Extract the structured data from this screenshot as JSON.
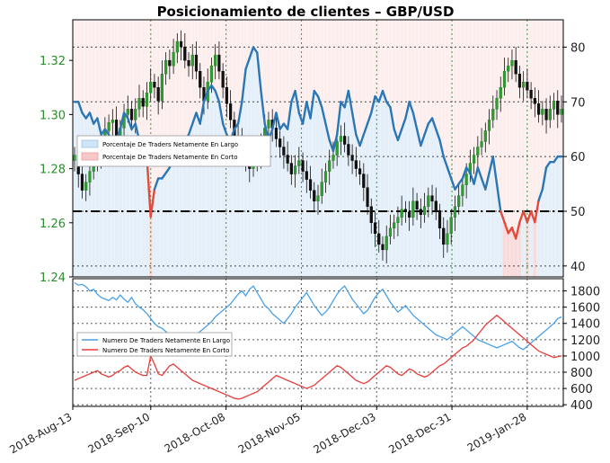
{
  "chart_data": {
    "type": "line",
    "title": "Posicionamiento de clientes – GBP/USD",
    "x_dates": [
      "2018-Aug-13",
      "2018-Sep-10",
      "2018-Oct-08",
      "2018-Nov-05",
      "2018-Dec-03",
      "2018-Dec-31",
      "2019-Jan-28"
    ],
    "top_panel": {
      "left_axis": {
        "label_ticks": [
          "1.24",
          "1.26",
          "1.28",
          "1.30",
          "1.32"
        ],
        "ylim": [
          1.24,
          1.335
        ],
        "color": "#2e8b2e"
      },
      "right_axis": {
        "label_ticks": [
          "40",
          "50",
          "60",
          "70",
          "80"
        ],
        "ylim": [
          38,
          85
        ]
      },
      "reference_line": {
        "value": 50,
        "style": "dash-dot"
      },
      "legend": [
        {
          "label": "Porcentaje De Traders Netamente En Largo",
          "color": "#cfe4f6"
        },
        {
          "label": "Porcentaje De Traders Netamente En Corto",
          "color": "#f8c8c8"
        }
      ],
      "series": [
        {
          "name": "Porcentaje De Traders Netamente En Largo (%)",
          "color": "#2b77b6",
          "values": [
            70,
            70,
            68,
            67,
            68,
            66,
            67,
            64,
            65,
            64,
            61,
            63,
            65,
            68,
            67,
            65,
            66,
            63,
            62,
            60,
            49,
            54,
            56,
            56,
            57,
            58,
            60,
            62,
            60,
            63,
            64,
            66,
            68,
            66,
            70,
            72,
            73,
            72,
            70,
            66,
            64,
            63,
            65,
            66,
            70,
            76,
            78,
            80,
            79,
            72,
            66,
            63,
            65,
            68,
            65,
            66,
            65,
            70,
            72,
            68,
            66,
            70,
            67,
            72,
            71,
            69,
            66,
            63,
            61,
            64,
            70,
            69,
            72,
            68,
            64,
            62,
            64,
            66,
            68,
            71,
            70,
            72,
            70,
            69,
            65,
            63,
            65,
            67,
            70,
            68,
            65,
            62,
            64,
            66,
            67,
            65,
            63,
            60,
            58,
            56,
            54,
            55,
            56,
            58,
            57,
            55,
            58,
            56,
            54,
            57,
            60,
            55,
            50,
            48,
            46,
            47,
            45,
            48,
            50,
            48,
            50,
            48,
            52,
            54,
            58,
            59,
            59,
            60,
            60
          ]
        },
        {
          "name": "GBP/USD",
          "color": "#2e8b2e",
          "values": [
            1.285,
            1.278,
            1.272,
            1.275,
            1.279,
            1.283,
            1.285,
            1.29,
            1.294,
            1.297,
            1.298,
            1.292,
            1.295,
            1.3,
            1.302,
            1.298,
            1.302,
            1.306,
            1.303,
            1.308,
            1.312,
            1.31,
            1.305,
            1.315,
            1.32,
            1.318,
            1.323,
            1.327,
            1.325,
            1.32,
            1.318,
            1.322,
            1.316,
            1.31,
            1.305,
            1.312,
            1.318,
            1.322,
            1.316,
            1.31,
            1.304,
            1.298,
            1.292,
            1.29,
            1.287,
            1.283,
            1.28,
            1.283,
            1.285,
            1.289,
            1.295,
            1.298,
            1.295,
            1.291,
            1.288,
            1.285,
            1.282,
            1.278,
            1.281,
            1.283,
            1.279,
            1.276,
            1.272,
            1.268,
            1.27,
            1.275,
            1.279,
            1.283,
            1.285,
            1.29,
            1.292,
            1.289,
            1.285,
            1.283,
            1.28,
            1.278,
            1.273,
            1.266,
            1.26,
            1.256,
            1.252,
            1.25,
            1.255,
            1.258,
            1.26,
            1.262,
            1.265,
            1.264,
            1.262,
            1.268,
            1.265,
            1.263,
            1.266,
            1.27,
            1.268,
            1.264,
            1.258,
            1.252,
            1.256,
            1.262,
            1.266,
            1.27,
            1.274,
            1.278,
            1.282,
            1.285,
            1.288,
            1.29,
            1.294,
            1.298,
            1.302,
            1.306,
            1.31,
            1.316,
            1.318,
            1.32,
            1.315,
            1.31,
            1.312,
            1.309,
            1.306,
            1.304,
            1.3,
            1.302,
            1.298,
            1.302,
            1.305,
            1.3,
            1.302
          ]
        }
      ]
    },
    "bottom_panel": {
      "right_axis": {
        "label_ticks": [
          "400",
          "600",
          "800",
          "1000",
          "1200",
          "1400",
          "1600",
          "1800"
        ],
        "ylim": [
          380,
          1950
        ]
      },
      "legend": [
        {
          "label": "Numero De Traders Netamente En Largo",
          "color": "#4aa1e6"
        },
        {
          "label": "Numero De Traders Netamente En Corto",
          "color": "#e83b3b"
        }
      ],
      "series": [
        {
          "name": "Numero De Traders Netamente En Largo",
          "color": "#4aa1e6",
          "values": [
            1900,
            1870,
            1880,
            1850,
            1800,
            1820,
            1760,
            1720,
            1700,
            1680,
            1720,
            1690,
            1750,
            1700,
            1660,
            1720,
            1640,
            1600,
            1570,
            1520,
            1460,
            1400,
            1360,
            1340,
            1300,
            1260,
            1220,
            1180,
            1100,
            1050,
            1150,
            1200,
            1260,
            1300,
            1340,
            1380,
            1420,
            1480,
            1520,
            1560,
            1600,
            1640,
            1700,
            1760,
            1800,
            1740,
            1820,
            1860,
            1780,
            1700,
            1620,
            1580,
            1520,
            1480,
            1440,
            1400,
            1460,
            1520,
            1600,
            1660,
            1720,
            1780,
            1700,
            1620,
            1560,
            1500,
            1540,
            1600,
            1680,
            1760,
            1820,
            1860,
            1780,
            1700,
            1640,
            1580,
            1520,
            1560,
            1640,
            1720,
            1780,
            1820,
            1740,
            1660,
            1600,
            1540,
            1580,
            1620,
            1560,
            1500,
            1460,
            1420,
            1380,
            1340,
            1300,
            1260,
            1240,
            1220,
            1200,
            1240,
            1280,
            1320,
            1360,
            1320,
            1280,
            1240,
            1200,
            1180,
            1160,
            1140,
            1120,
            1100,
            1120,
            1140,
            1160,
            1180,
            1140,
            1100,
            1080,
            1120,
            1160,
            1200,
            1240,
            1280,
            1320,
            1360,
            1400,
            1460,
            1480
          ]
        },
        {
          "name": "Numero De Traders Netamente En Corto",
          "color": "#e83b3b",
          "values": [
            700,
            720,
            740,
            760,
            780,
            800,
            820,
            780,
            760,
            740,
            760,
            800,
            820,
            860,
            880,
            840,
            800,
            780,
            760,
            760,
            1000,
            900,
            780,
            760,
            820,
            880,
            900,
            860,
            820,
            780,
            740,
            700,
            680,
            660,
            640,
            620,
            600,
            580,
            560,
            540,
            520,
            500,
            480,
            470,
            480,
            500,
            520,
            540,
            560,
            600,
            640,
            680,
            720,
            760,
            740,
            720,
            700,
            680,
            660,
            640,
            620,
            600,
            620,
            640,
            680,
            720,
            760,
            800,
            840,
            880,
            860,
            820,
            780,
            740,
            700,
            680,
            660,
            680,
            720,
            760,
            800,
            840,
            880,
            860,
            820,
            780,
            760,
            800,
            840,
            820,
            780,
            760,
            740,
            760,
            800,
            840,
            880,
            900,
            940,
            980,
            1020,
            1060,
            1100,
            1120,
            1160,
            1200,
            1260,
            1320,
            1380,
            1420,
            1460,
            1500,
            1460,
            1420,
            1380,
            1340,
            1300,
            1260,
            1220,
            1180,
            1140,
            1100,
            1060,
            1040,
            1020,
            1000,
            980,
            990,
            1000
          ]
        }
      ]
    }
  }
}
